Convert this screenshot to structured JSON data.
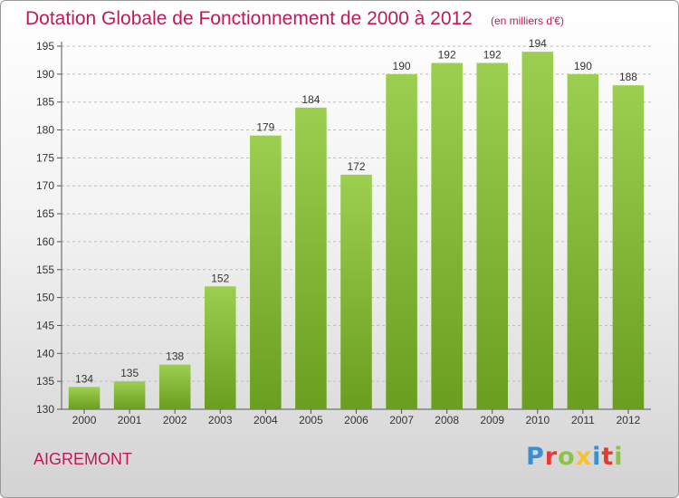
{
  "header": {
    "title": "Dotation Globale de Fonctionnement de 2000 à 2012",
    "unit": "(en milliers d'€)"
  },
  "footer": {
    "commune": "AIGREMONT",
    "logo_text": "Proxiti",
    "logo_colors": [
      "#3a8fd0",
      "#e53935",
      "#8bc34a",
      "#fbc02d",
      "#3a8fd0",
      "#e53935",
      "#8bc34a"
    ]
  },
  "colors": {
    "title": "#c2185b",
    "bar_top": "#9ccf50",
    "bar_bottom": "#6a9e1f",
    "grid": "#bdbdbd"
  },
  "chart_data": {
    "type": "bar",
    "title": "Dotation Globale de Fonctionnement de 2000 à 2012",
    "subtitle": "(en milliers d'€)",
    "categories": [
      "2000",
      "2001",
      "2002",
      "2003",
      "2004",
      "2005",
      "2006",
      "2007",
      "2008",
      "2009",
      "2010",
      "2011",
      "2012"
    ],
    "values": [
      134,
      135,
      138,
      152,
      179,
      184,
      172,
      190,
      192,
      192,
      194,
      190,
      188
    ],
    "ylim": [
      130,
      195
    ],
    "yticks": [
      130,
      135,
      140,
      145,
      150,
      155,
      160,
      165,
      170,
      175,
      180,
      185,
      190,
      195
    ],
    "grid": true,
    "xlabel": "",
    "ylabel": ""
  }
}
